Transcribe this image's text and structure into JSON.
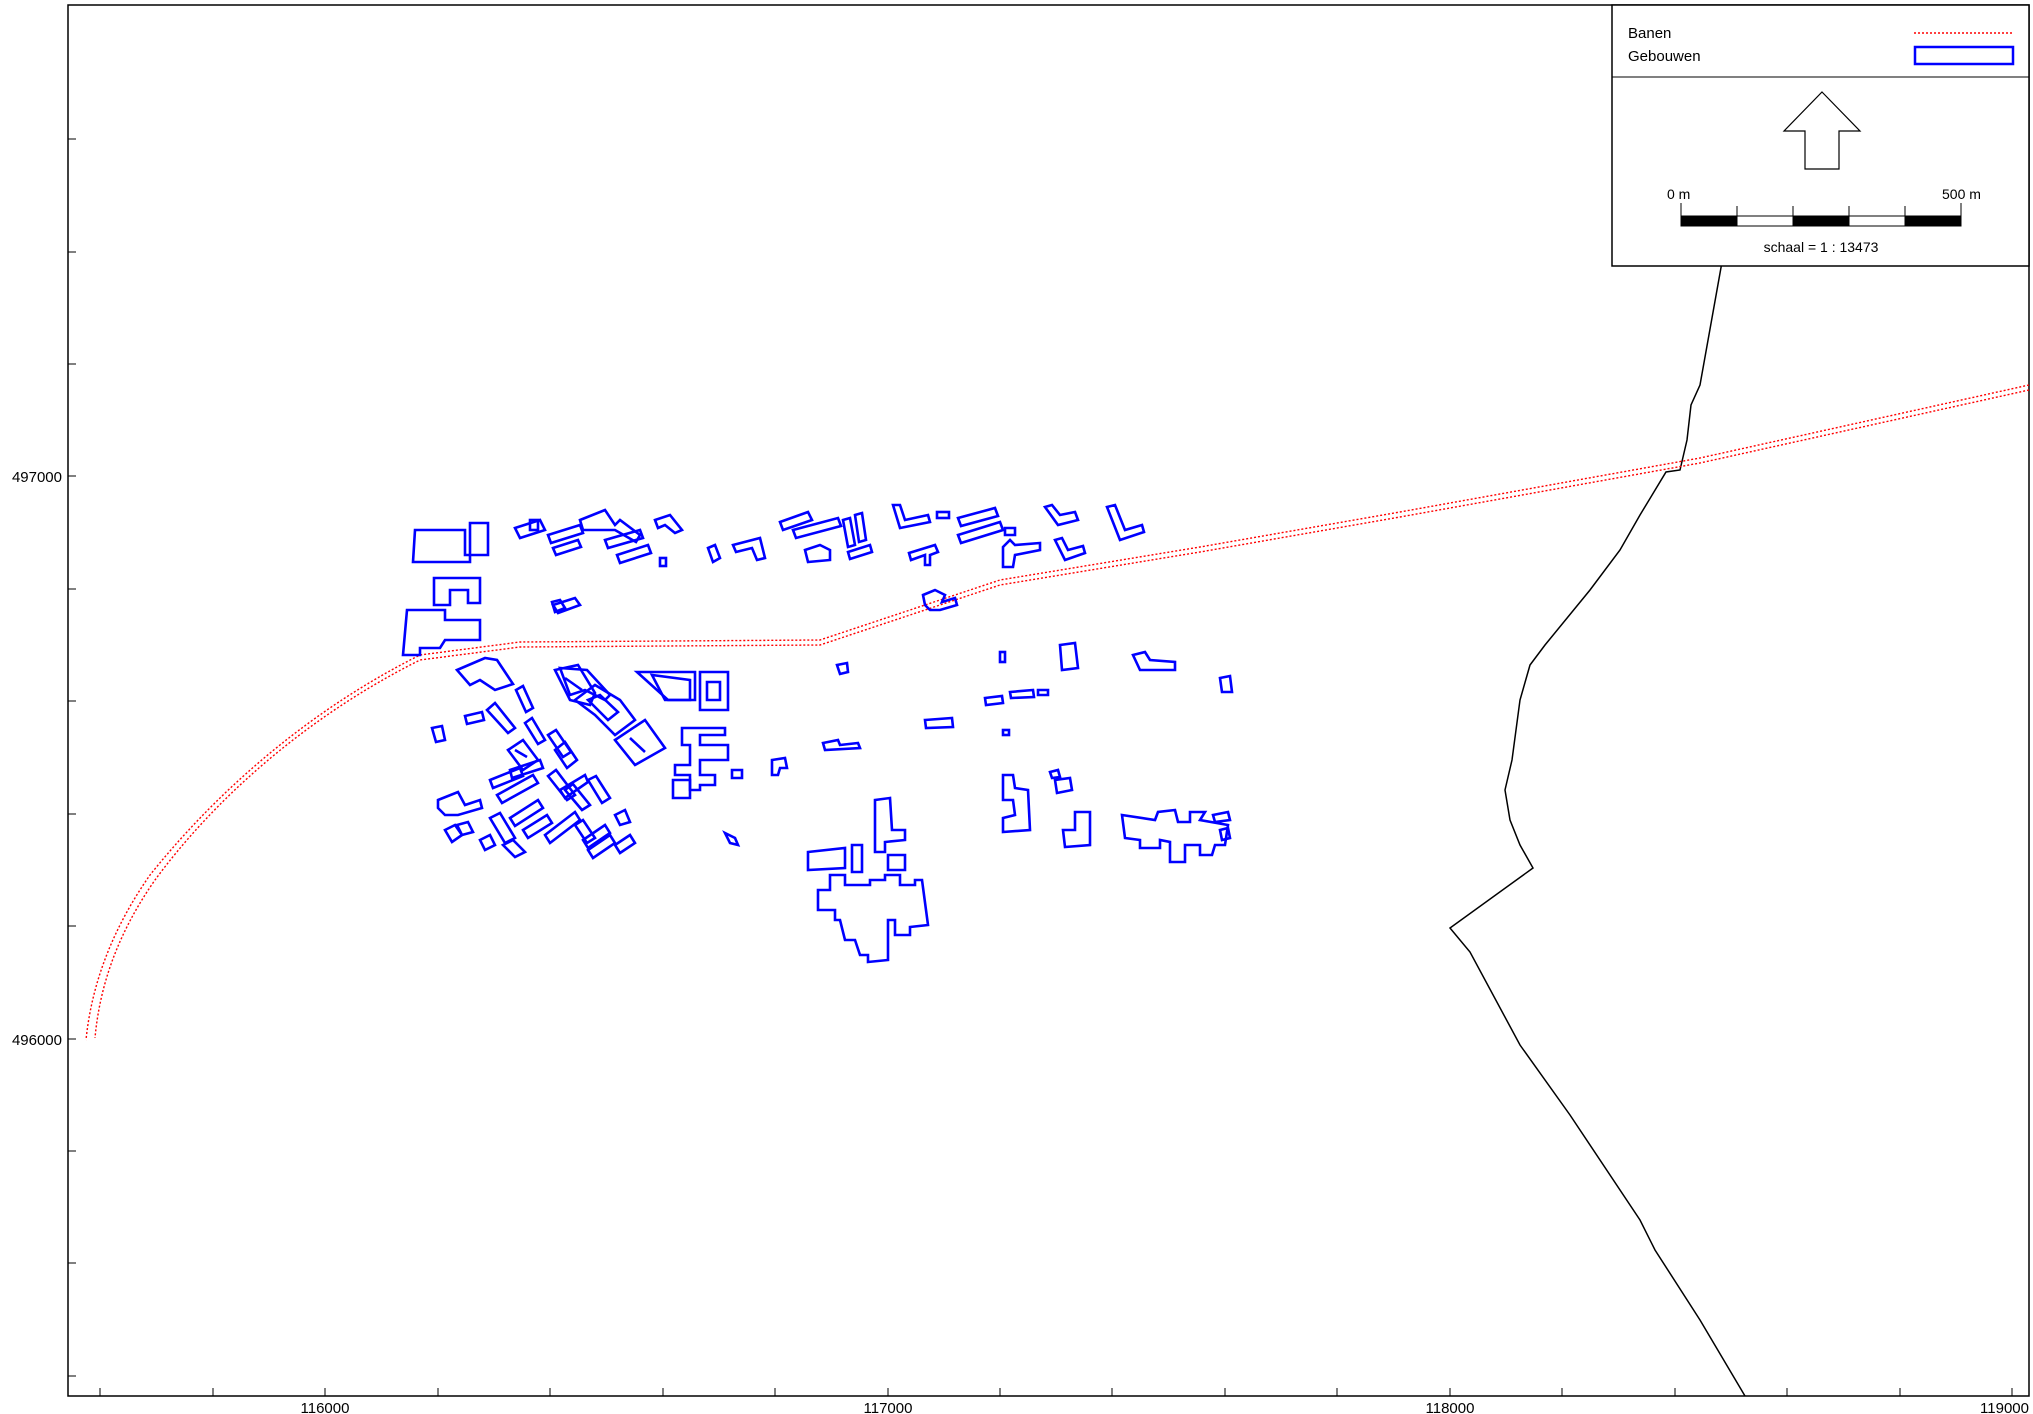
{
  "map": {
    "axes": {
      "x_ticks": [
        "116000",
        "117000",
        "118000",
        "119000"
      ],
      "y_ticks": [
        "497000",
        "496000"
      ]
    },
    "legend": {
      "items": [
        {
          "label": "Banen",
          "style": "red-dotted-line",
          "color": "#ff0000"
        },
        {
          "label": "Gebouwen",
          "style": "blue-outline-rect",
          "color": "#0000ff"
        }
      ]
    },
    "north_arrow": {
      "icon": "north-arrow-icon"
    },
    "scale_bar": {
      "start_label": "0 m",
      "end_label": "500 m",
      "scale_text": "schaal = 1 : 13473"
    },
    "colors": {
      "rail": "#ff0000",
      "buildings": "#0000ff",
      "boundary": "#000000"
    }
  }
}
